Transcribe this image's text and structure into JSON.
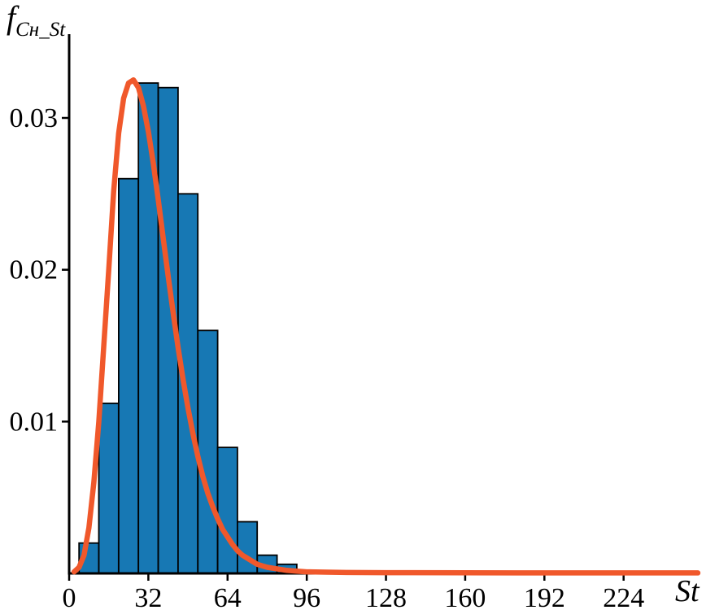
{
  "figure": {
    "background": "#ffffff"
  },
  "chart_data": {
    "type": "bar",
    "subtype": "histogram-with-fitted-density-curve",
    "title": "",
    "ylabel_main": "f",
    "ylabel_sub": "Cн_St",
    "xlabel": "St",
    "xlim": [
      0,
      254
    ],
    "ylim": [
      0,
      0.0345
    ],
    "xticks": [
      0,
      32,
      64,
      96,
      128,
      160,
      192,
      224
    ],
    "xtick_labels": [
      "0",
      "32",
      "64",
      "96",
      "128",
      "160",
      "192",
      "224"
    ],
    "yticks": [
      0.01,
      0.02,
      0.03
    ],
    "ytick_labels": [
      "0.01",
      "0.02",
      "0.03"
    ],
    "grid": false,
    "legend": null,
    "axis_color": "#000000",
    "bar_color": "#1778b4",
    "bar_edge_color": "#000000",
    "curve_color": "#f0582b",
    "bins": {
      "start": 4,
      "width": 8
    },
    "bin_edges": [
      4,
      12,
      20,
      28,
      36,
      44,
      52,
      60,
      68,
      76,
      84,
      92
    ],
    "bar_heights": [
      0.002,
      0.0112,
      0.026,
      0.0323,
      0.032,
      0.025,
      0.016,
      0.0083,
      0.0034,
      0.0012,
      0.0006
    ],
    "curve": {
      "x": [
        2,
        4,
        6,
        8,
        10,
        12,
        14,
        16,
        18,
        20,
        22,
        24,
        26,
        28,
        30,
        32,
        34,
        36,
        38,
        40,
        42,
        44,
        46,
        48,
        50,
        52,
        54,
        56,
        58,
        60,
        62,
        64,
        66,
        68,
        70,
        72,
        74,
        76,
        78,
        80,
        84,
        88,
        92,
        96,
        104,
        112,
        128,
        160,
        192,
        224,
        254
      ],
      "y": [
        0.0001,
        0.0004,
        0.0012,
        0.003,
        0.006,
        0.01,
        0.015,
        0.02,
        0.0252,
        0.029,
        0.0313,
        0.0323,
        0.0325,
        0.032,
        0.0308,
        0.0291,
        0.027,
        0.0246,
        0.0221,
        0.0196,
        0.0172,
        0.0149,
        0.0128,
        0.0109,
        0.0092,
        0.0077,
        0.0064,
        0.0053,
        0.0044,
        0.0036,
        0.0029,
        0.0024,
        0.0019,
        0.0015,
        0.0012,
        0.001,
        0.0008,
        0.0006,
        0.0005,
        0.0004,
        0.0003,
        0.0002,
        0.00015,
        0.0001,
        8e-05,
        6e-05,
        5e-05,
        4e-05,
        3e-05,
        3e-05,
        3e-05
      ]
    }
  }
}
